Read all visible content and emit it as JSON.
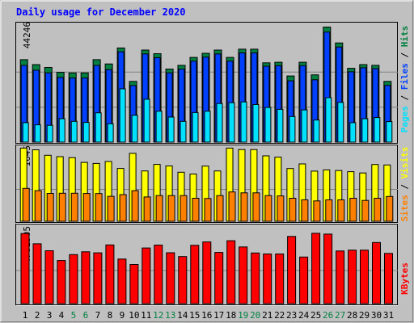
{
  "title": "Daily usage for December 2020",
  "colors": {
    "background": "#c0c0c0",
    "title": "#0000ff",
    "hits": "#008040",
    "files": "#0040ff",
    "pages": "#00e0ff",
    "visits": "#ffff00",
    "sites": "#ff8000",
    "kbytes": "#ff0000",
    "weekend_label": "#008040",
    "weekday_label": "#000000"
  },
  "chart_data": [
    {
      "type": "bar",
      "panel": "hits-files-pages",
      "side_labels": [
        "Pages",
        "Files",
        "Hits"
      ],
      "ymax_label": "44246",
      "ylim": [
        0,
        44246
      ],
      "categories": [
        "1",
        "2",
        "3",
        "4",
        "5",
        "6",
        "7",
        "8",
        "9",
        "10",
        "11",
        "12",
        "13",
        "14",
        "15",
        "16",
        "17",
        "18",
        "19",
        "20",
        "21",
        "22",
        "23",
        "24",
        "25",
        "26",
        "27",
        "28",
        "29",
        "30",
        "31"
      ],
      "series": [
        {
          "name": "Hits",
          "values": [
            30950,
            29090,
            28040,
            26180,
            25960,
            25960,
            30950,
            29340,
            35330,
            22800,
            34560,
            33190,
            27440,
            28820,
            31790,
            33350,
            34560,
            31790,
            34890,
            34890,
            29760,
            29970,
            24830,
            29970,
            25250,
            43180,
            37200,
            27690,
            29090,
            28820,
            22800
          ]
        },
        {
          "name": "Files",
          "values": [
            28800,
            27000,
            26000,
            24300,
            24100,
            24100,
            28800,
            27200,
            33900,
            21200,
            33100,
            31700,
            26000,
            27400,
            30400,
            31900,
            33100,
            30400,
            33500,
            33500,
            28500,
            28700,
            23000,
            28700,
            23400,
            41300,
            35700,
            26400,
            27900,
            27600,
            21300
          ]
        },
        {
          "name": "Pages",
          "values": [
            7300,
            6500,
            6300,
            8800,
            7800,
            7400,
            11000,
            6900,
            20000,
            10100,
            16100,
            11600,
            9400,
            7800,
            11100,
            11600,
            14500,
            14800,
            15100,
            14100,
            13000,
            12300,
            9600,
            12100,
            8300,
            16700,
            14900,
            7300,
            8800,
            9200,
            7700
          ]
        }
      ]
    },
    {
      "type": "bar",
      "panel": "visits-sites",
      "side_labels": [
        "Sites",
        "Visits"
      ],
      "ymax_label": "1645",
      "ylim": [
        0,
        1645
      ],
      "categories": [
        "1",
        "2",
        "3",
        "4",
        "5",
        "6",
        "7",
        "8",
        "9",
        "10",
        "11",
        "12",
        "13",
        "14",
        "15",
        "16",
        "17",
        "18",
        "19",
        "20",
        "21",
        "22",
        "23",
        "24",
        "25",
        "26",
        "27",
        "28",
        "29",
        "30",
        "31"
      ],
      "series": [
        {
          "name": "Visits",
          "values": [
            1637,
            1600,
            1476,
            1447,
            1424,
            1318,
            1294,
            1338,
            1182,
            1521,
            1126,
            1272,
            1238,
            1098,
            1057,
            1235,
            1126,
            1637,
            1605,
            1605,
            1465,
            1436,
            1180,
            1284,
            1122,
            1150,
            1135,
            1110,
            1081,
            1270,
            1260
          ]
        },
        {
          "name": "Sites",
          "values": [
            735,
            686,
            624,
            627,
            627,
            621,
            620,
            559,
            597,
            686,
            544,
            575,
            575,
            575,
            515,
            509,
            575,
            657,
            637,
            637,
            575,
            567,
            515,
            479,
            456,
            479,
            479,
            515,
            466,
            515,
            555
          ]
        }
      ]
    },
    {
      "type": "bar",
      "panel": "kbytes",
      "side_labels": [
        "KBytes"
      ],
      "ymax_label": "4781505",
      "ylim": [
        0,
        4781505
      ],
      "categories": [
        "1",
        "2",
        "3",
        "4",
        "5",
        "6",
        "7",
        "8",
        "9",
        "10",
        "11",
        "12",
        "13",
        "14",
        "15",
        "16",
        "17",
        "18",
        "19",
        "20",
        "21",
        "22",
        "23",
        "24",
        "25",
        "26",
        "27",
        "28",
        "29",
        "30",
        "31"
      ],
      "series": [
        {
          "name": "KBytes",
          "values": [
            4414000,
            3768000,
            3332000,
            2714000,
            3090000,
            3265000,
            3197000,
            3697000,
            2808000,
            2469000,
            3505000,
            3686000,
            3206000,
            2966000,
            3672000,
            3888000,
            3226000,
            3964000,
            3569000,
            3187000,
            3126000,
            3126000,
            4233000,
            2936000,
            4428000,
            4380000,
            3314000,
            3366000,
            3366000,
            3853000,
            3166000
          ]
        }
      ]
    }
  ],
  "x_labels": [
    "1",
    "2",
    "3",
    "4",
    "5",
    "6",
    "7",
    "8",
    "9",
    "10",
    "11",
    "12",
    "13",
    "14",
    "15",
    "16",
    "17",
    "18",
    "19",
    "20",
    "21",
    "22",
    "23",
    "24",
    "25",
    "26",
    "27",
    "28",
    "29",
    "30",
    "31"
  ],
  "weekend_days": [
    "5",
    "6",
    "12",
    "13",
    "19",
    "20",
    "26",
    "27"
  ]
}
